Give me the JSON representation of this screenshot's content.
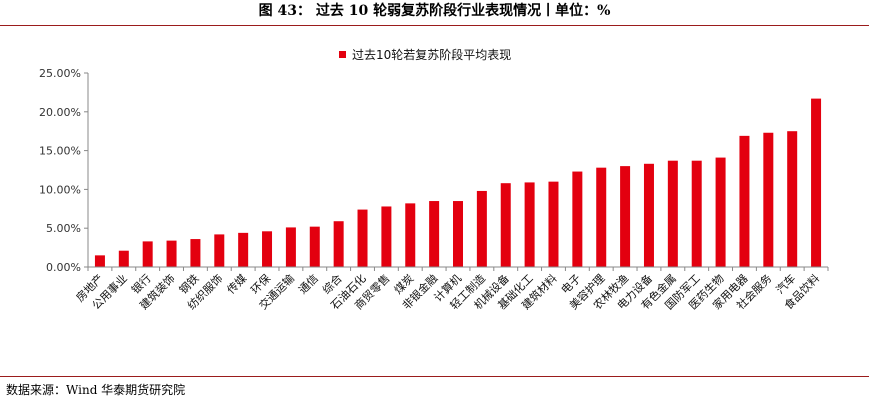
{
  "figure": {
    "title": "图 43：  过去 10 轮弱复苏阶段行业表现情况丨单位：%",
    "source": "数据来源：Wind  华泰期货研究院"
  },
  "chart_data": {
    "type": "bar",
    "title": "",
    "xlabel": "",
    "ylabel": "",
    "ylim": [
      0,
      25
    ],
    "yticks": [
      "0.00%",
      "5.00%",
      "10.00%",
      "15.00%",
      "20.00%",
      "25.00%"
    ],
    "legend_position": "top-center",
    "grid": false,
    "bar_color": "#e3000f",
    "series": [
      {
        "name": "过去10轮若复苏阶段平均表现",
        "values": [
          1.5,
          2.1,
          3.3,
          3.4,
          3.6,
          4.2,
          4.4,
          4.6,
          5.1,
          5.2,
          5.9,
          7.4,
          7.8,
          8.2,
          8.5,
          8.5,
          9.8,
          10.8,
          10.9,
          11.0,
          12.3,
          12.8,
          13.0,
          13.3,
          13.7,
          13.7,
          14.1,
          16.9,
          17.3,
          17.5,
          21.7
        ]
      }
    ],
    "categories": [
      "房地产",
      "公用事业",
      "银行",
      "建筑装饰",
      "钢铁",
      "纺织服饰",
      "传媒",
      "环保",
      "交通运输",
      "通信",
      "综合",
      "石油石化",
      "商贸零售",
      "煤炭",
      "非银金融",
      "计算机",
      "轻工制造",
      "机械设备",
      "基础化工",
      "建筑材料",
      "电子",
      "美容护理",
      "农林牧渔",
      "电力设备",
      "有色金属",
      "国防军工",
      "医药生物",
      "家用电器",
      "社会服务",
      "汽车",
      "食品饮料"
    ]
  }
}
